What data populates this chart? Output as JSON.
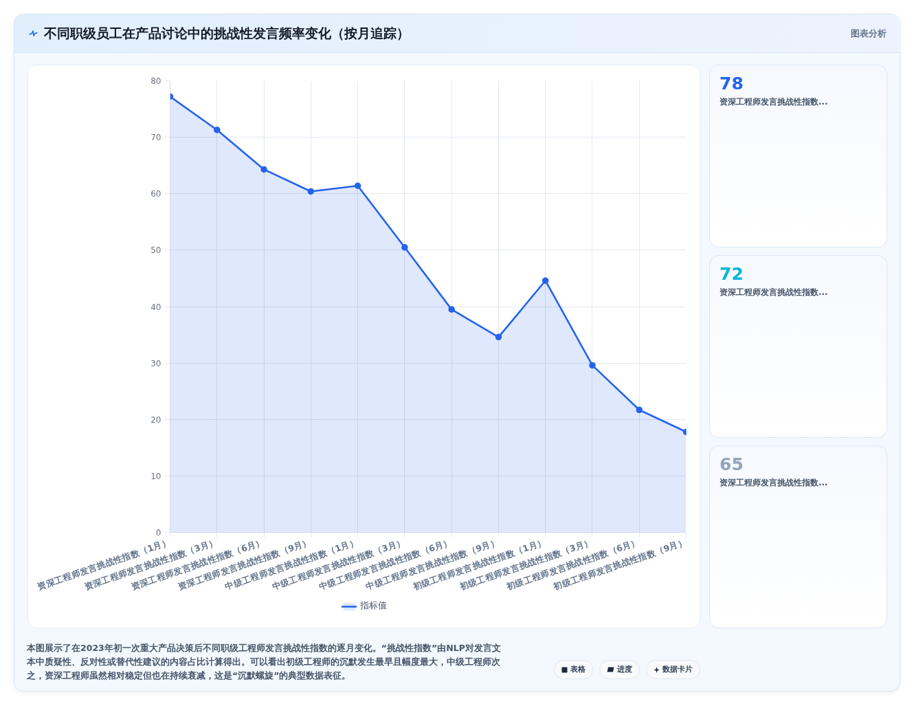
{
  "chart_data": [
    {
      "type": "area",
      "title": "不同职级员工在产品讨论中的挑战性发言频率变化（按月追踪）",
      "categories": [
        "资深工程师发言挑战性指数（1月）",
        "资深工程师发言挑战性指数（3月）",
        "资深工程师发言挑战性指数（6月）",
        "资深工程师发言挑战性指数（9月）",
        "中级工程师发言挑战性指数（1月）",
        "中级工程师发言挑战性指数（3月）",
        "中级工程师发言挑战性指数（6月）",
        "中级工程师发言挑战性指数（9月）",
        "初级工程师发言挑战性指数（1月）",
        "初级工程师发言挑战性指数（3月）",
        "初级工程师发言挑战性指数（6月）",
        "初级工程师发言挑战性指数（9月）"
      ],
      "series": [
        {
          "name": "指标值",
          "color": "#2563eb",
          "values": [
            77.2,
            71.3,
            64.3,
            60.4,
            61.4,
            50.5,
            39.5,
            34.6,
            44.6,
            29.6,
            21.7,
            17.8
          ]
        }
      ],
      "ylim": [
        0,
        80
      ],
      "yticks": [
        0,
        10,
        20,
        30,
        40,
        50,
        60,
        70,
        80
      ],
      "grid": true,
      "legend": "bottom",
      "marker": "circle",
      "annotations": [
        "图表分析",
        "本图展示了在2023年初一次重大产品决策后不同职级工程师发言挑战性指数的逐月变化。“挑战性指数”由NLP对发言文本中质疑性、反对性或替代性建议的内容占比计算得出。可以看出初级工程师的沉默发生最早且幅度最大，中级工程师次之，资深工程师虽然相对稳定但也在持续衰减，这是“沉默螺旋”的典型数据表征。",
        "表格",
        "进度",
        "数据卡片"
      ]
    },
    {
      "type": "other",
      "title": "78",
      "subtitle": "资深工程师发言挑战性指数...",
      "color": "#2563eb"
    },
    {
      "type": "other",
      "title": "72",
      "subtitle": "资深工程师发言挑战性指数...",
      "color": "#06b6d4"
    },
    {
      "type": "other",
      "title": "65",
      "subtitle": "资深工程师发言挑战性指数...",
      "color": "#94a3b8"
    }
  ]
}
